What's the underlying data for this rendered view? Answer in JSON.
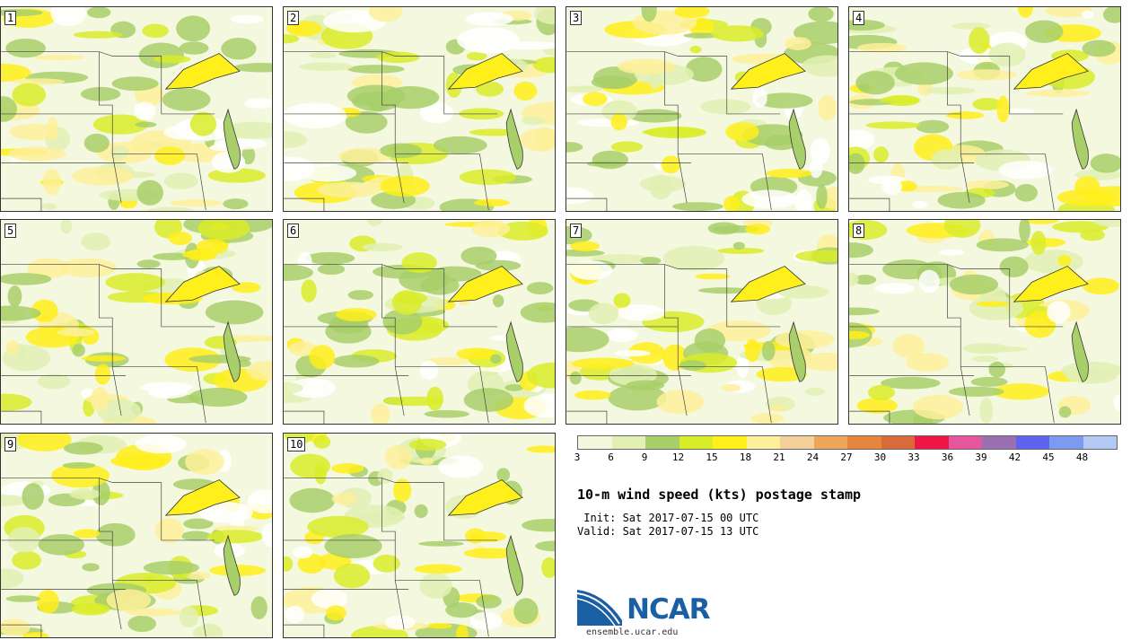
{
  "stamps": [
    "1",
    "2",
    "3",
    "4",
    "5",
    "6",
    "7",
    "8",
    "9",
    "10"
  ],
  "colorbar": {
    "colors": [
      "#f2f8dc",
      "#e2f0b4",
      "#a8cf6a",
      "#d9ec2a",
      "#ffef1a",
      "#fdf09a",
      "#f4d19a",
      "#eda75c",
      "#e6853d",
      "#d96a3a",
      "#f01645",
      "#e6569e",
      "#9a70b0",
      "#5e64f0",
      "#7b9af0",
      "#b4c8f4"
    ],
    "labels": [
      "3",
      "6",
      "9",
      "12",
      "15",
      "18",
      "21",
      "24",
      "27",
      "30",
      "33",
      "36",
      "39",
      "42",
      "45",
      "48"
    ]
  },
  "title": "10-m wind speed (kts) postage stamp",
  "init": " Init: Sat 2017-07-15 00 UTC",
  "valid": "Valid: Sat 2017-07-15 13 UTC",
  "logo_text": "NCAR",
  "site": "ensemble.ucar.edu"
}
